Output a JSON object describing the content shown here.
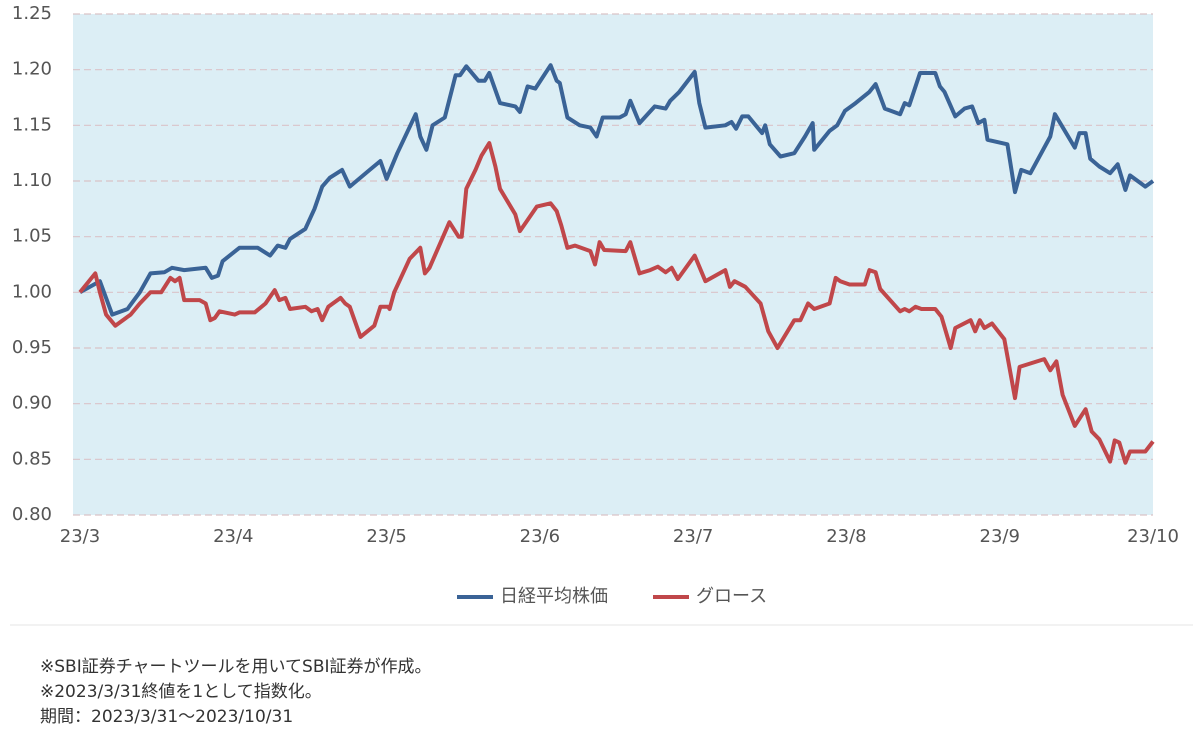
{
  "chart_data": {
    "type": "line",
    "xlim": [
      0,
      7
    ],
    "xticks": [
      {
        "value": 0,
        "label": "23/3"
      },
      {
        "value": 1,
        "label": "23/4"
      },
      {
        "value": 2,
        "label": "23/5"
      },
      {
        "value": 3,
        "label": "23/6"
      },
      {
        "value": 4,
        "label": "23/7"
      },
      {
        "value": 5,
        "label": "23/8"
      },
      {
        "value": 6,
        "label": "23/9"
      },
      {
        "value": 7,
        "label": "23/10"
      }
    ],
    "ylim": [
      0.8,
      1.25
    ],
    "yticks": [
      {
        "value": 0.8,
        "label": "0.80"
      },
      0.85,
      {
        "value": 0.9,
        "label": "0.90"
      },
      0.95,
      {
        "value": 1,
        "label": "1.00"
      },
      1.05,
      {
        "value": 1.1,
        "label": "1.10"
      },
      1.15,
      {
        "value": 1.2,
        "label": "1.20"
      },
      1.25
    ],
    "grid": true,
    "legend": "bottom",
    "series": [
      {
        "name": "日経平均株価",
        "color": "#3a6396",
        "x": [
          0,
          0.13,
          0.21,
          0.31,
          0.39,
          0.46,
          0.55,
          0.6,
          0.68,
          0.82,
          0.86,
          0.9,
          0.93,
          1.04,
          1.16,
          1.24,
          1.29,
          1.34,
          1.37,
          1.47,
          1.53,
          1.58,
          1.63,
          1.71,
          1.76,
          1.89,
          1.96,
          2.0,
          2.07,
          2.19,
          2.22,
          2.26,
          2.3,
          2.38,
          2.45,
          2.48,
          2.52,
          2.6,
          2.64,
          2.67,
          2.74,
          2.84,
          2.87,
          2.92,
          2.97,
          3.07,
          3.11,
          3.13,
          3.18,
          3.26,
          3.33,
          3.37,
          3.41,
          3.52,
          3.56,
          3.59,
          3.65,
          3.75,
          3.82,
          3.85,
          3.91,
          4.01,
          4.04,
          4.08,
          4.21,
          4.25,
          4.28,
          4.32,
          4.36,
          4.45,
          4.47,
          4.5,
          4.57,
          4.66,
          4.73,
          4.78,
          4.79,
          4.89,
          4.94,
          4.99,
          5.06,
          5.15,
          5.19,
          5.25,
          5.35,
          5.38,
          5.41,
          5.48,
          5.58,
          5.61,
          5.64,
          5.71,
          5.77,
          5.82,
          5.86,
          5.9,
          5.92,
          6.05,
          6.1,
          6.14,
          6.2,
          6.33,
          6.36,
          6.49,
          6.52,
          6.56,
          6.59,
          6.65,
          6.72,
          6.77,
          6.82,
          6.85,
          6.95,
          7.0
        ],
        "values": [
          1.0,
          1.01,
          0.98,
          0.985,
          1.0,
          1.017,
          1.018,
          1.022,
          1.02,
          1.022,
          1.013,
          1.015,
          1.028,
          1.04,
          1.04,
          1.033,
          1.042,
          1.04,
          1.048,
          1.057,
          1.075,
          1.095,
          1.103,
          1.11,
          1.095,
          1.11,
          1.118,
          1.102,
          1.125,
          1.16,
          1.14,
          1.128,
          1.15,
          1.157,
          1.195,
          1.195,
          1.203,
          1.19,
          1.19,
          1.197,
          1.17,
          1.167,
          1.162,
          1.185,
          1.183,
          1.204,
          1.19,
          1.188,
          1.157,
          1.15,
          1.148,
          1.14,
          1.157,
          1.157,
          1.16,
          1.172,
          1.152,
          1.167,
          1.165,
          1.172,
          1.18,
          1.198,
          1.17,
          1.148,
          1.15,
          1.153,
          1.147,
          1.158,
          1.158,
          1.143,
          1.15,
          1.133,
          1.122,
          1.125,
          1.14,
          1.152,
          1.128,
          1.145,
          1.15,
          1.163,
          1.17,
          1.18,
          1.187,
          1.165,
          1.16,
          1.17,
          1.168,
          1.197,
          1.197,
          1.185,
          1.18,
          1.158,
          1.165,
          1.167,
          1.152,
          1.155,
          1.137,
          1.133,
          1.09,
          1.11,
          1.107,
          1.14,
          1.16,
          1.13,
          1.143,
          1.143,
          1.12,
          1.113,
          1.107,
          1.115,
          1.092,
          1.105,
          1.095,
          1.1
        ]
      },
      {
        "name": "グロース",
        "color": "#c0474a",
        "x": [
          0,
          0.1,
          0.13,
          0.17,
          0.23,
          0.33,
          0.39,
          0.46,
          0.53,
          0.59,
          0.62,
          0.65,
          0.68,
          0.78,
          0.82,
          0.85,
          0.88,
          0.91,
          1.01,
          1.04,
          1.14,
          1.21,
          1.27,
          1.3,
          1.34,
          1.37,
          1.47,
          1.51,
          1.55,
          1.58,
          1.62,
          1.7,
          1.73,
          1.76,
          1.83,
          1.92,
          1.96,
          2.01,
          2.02,
          2.05,
          2.15,
          2.22,
          2.25,
          2.28,
          2.41,
          2.47,
          2.49,
          2.52,
          2.58,
          2.62,
          2.67,
          2.71,
          2.74,
          2.84,
          2.87,
          2.92,
          2.98,
          3.07,
          3.11,
          3.14,
          3.18,
          3.23,
          3.33,
          3.36,
          3.39,
          3.42,
          3.56,
          3.59,
          3.65,
          3.72,
          3.77,
          3.82,
          3.86,
          3.9,
          4.01,
          4.08,
          4.21,
          4.24,
          4.27,
          4.34,
          4.44,
          4.49,
          4.55,
          4.66,
          4.7,
          4.75,
          4.79,
          4.89,
          4.93,
          4.96,
          5.02,
          5.12,
          5.15,
          5.19,
          5.22,
          5.35,
          5.38,
          5.41,
          5.45,
          5.49,
          5.58,
          5.62,
          5.68,
          5.71,
          5.81,
          5.84,
          5.87,
          5.9,
          5.95,
          6.03,
          6.1,
          6.13,
          6.29,
          6.33,
          6.37,
          6.41,
          6.49,
          6.56,
          6.6,
          6.65,
          6.72,
          6.75,
          6.78,
          6.82,
          6.85,
          6.95,
          7.0
        ],
        "values": [
          1.0,
          1.017,
          1.0,
          0.98,
          0.97,
          0.98,
          0.99,
          1.0,
          1.0,
          1.013,
          1.01,
          1.013,
          0.993,
          0.993,
          0.99,
          0.975,
          0.977,
          0.983,
          0.98,
          0.982,
          0.982,
          0.99,
          1.002,
          0.993,
          0.995,
          0.985,
          0.987,
          0.983,
          0.985,
          0.975,
          0.987,
          0.995,
          0.99,
          0.987,
          0.96,
          0.97,
          0.987,
          0.987,
          0.985,
          1.0,
          1.03,
          1.04,
          1.017,
          1.022,
          1.063,
          1.05,
          1.05,
          1.093,
          1.11,
          1.123,
          1.134,
          1.113,
          1.093,
          1.07,
          1.055,
          1.065,
          1.077,
          1.08,
          1.073,
          1.06,
          1.04,
          1.042,
          1.037,
          1.025,
          1.045,
          1.038,
          1.037,
          1.045,
          1.017,
          1.02,
          1.023,
          1.018,
          1.022,
          1.012,
          1.033,
          1.01,
          1.02,
          1.005,
          1.01,
          1.005,
          0.99,
          0.965,
          0.95,
          0.975,
          0.975,
          0.99,
          0.985,
          0.99,
          1.013,
          1.01,
          1.007,
          1.007,
          1.02,
          1.018,
          1.003,
          0.983,
          0.985,
          0.983,
          0.987,
          0.985,
          0.985,
          0.978,
          0.95,
          0.968,
          0.975,
          0.965,
          0.975,
          0.968,
          0.972,
          0.958,
          0.905,
          0.933,
          0.94,
          0.93,
          0.938,
          0.908,
          0.88,
          0.895,
          0.875,
          0.868,
          0.848,
          0.867,
          0.865,
          0.847,
          0.857,
          0.857,
          0.866
        ]
      }
    ],
    "notes": [
      "※SBI証券チャートツールを用いてSBI証券が作成。",
      "※2023/3/31終値を1として指数化。",
      "期間：2023/3/31～2023/10/31"
    ]
  }
}
